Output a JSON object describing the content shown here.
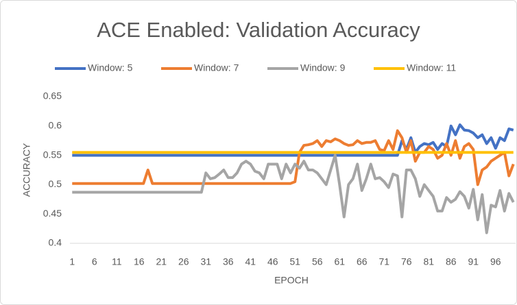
{
  "chart_data": {
    "type": "line",
    "title": "ACE Enabled: Validation Accuracy",
    "x_label": "EPOCH",
    "y_label": "ACCURACY",
    "categories": [
      "1",
      null,
      null,
      null,
      null,
      "6",
      null,
      null,
      null,
      null,
      "11",
      null,
      null,
      null,
      null,
      "16",
      null,
      null,
      null,
      null,
      "21",
      null,
      null,
      null,
      null,
      "26",
      null,
      null,
      null,
      null,
      "31",
      null,
      null,
      null,
      null,
      "36",
      null,
      null,
      null,
      null,
      "41",
      null,
      null,
      null,
      null,
      "46",
      null,
      null,
      null,
      null,
      "51",
      null,
      null,
      null,
      null,
      "56",
      null,
      null,
      null,
      null,
      "61",
      null,
      null,
      null,
      null,
      "66",
      null,
      null,
      null,
      null,
      "71",
      null,
      null,
      null,
      null,
      "76",
      null,
      null,
      null,
      null,
      "81",
      null,
      null,
      null,
      null,
      "86",
      null,
      null,
      null,
      null,
      "91",
      null,
      null,
      null,
      null,
      "96",
      null,
      null,
      null,
      null
    ],
    "series": [
      {
        "name": "Window: 5",
        "color": "#4472c4",
        "values": [
          0.55,
          0.55,
          0.55,
          0.55,
          0.55,
          0.55,
          0.55,
          0.55,
          0.55,
          0.55,
          0.55,
          0.55,
          0.55,
          0.55,
          0.55,
          0.55,
          0.55,
          0.55,
          0.55,
          0.55,
          0.55,
          0.55,
          0.55,
          0.55,
          0.55,
          0.55,
          0.55,
          0.55,
          0.55,
          0.55,
          0.55,
          0.55,
          0.55,
          0.55,
          0.55,
          0.55,
          0.55,
          0.55,
          0.55,
          0.55,
          0.55,
          0.55,
          0.55,
          0.55,
          0.55,
          0.55,
          0.55,
          0.55,
          0.55,
          0.55,
          0.55,
          0.55,
          0.55,
          0.55,
          0.55,
          0.55,
          0.55,
          0.55,
          0.55,
          0.55,
          0.55,
          0.55,
          0.55,
          0.55,
          0.55,
          0.55,
          0.55,
          0.55,
          0.55,
          0.55,
          0.55,
          0.55,
          0.55,
          0.55,
          0.575,
          0.56,
          0.58,
          0.555,
          0.565,
          0.57,
          0.568,
          0.572,
          0.56,
          0.57,
          0.565,
          0.6,
          0.585,
          0.602,
          0.593,
          0.592,
          0.588,
          0.58,
          0.585,
          0.57,
          0.58,
          0.562,
          0.58,
          0.575,
          0.595,
          0.593
        ]
      },
      {
        "name": "Window: 7",
        "color": "#ed7d31",
        "values": [
          0.502,
          0.502,
          0.502,
          0.502,
          0.502,
          0.502,
          0.502,
          0.502,
          0.502,
          0.502,
          0.502,
          0.502,
          0.502,
          0.502,
          0.502,
          0.502,
          0.502,
          0.525,
          0.502,
          0.502,
          0.502,
          0.502,
          0.502,
          0.502,
          0.502,
          0.502,
          0.502,
          0.502,
          0.502,
          0.502,
          0.502,
          0.502,
          0.502,
          0.502,
          0.502,
          0.502,
          0.502,
          0.502,
          0.502,
          0.502,
          0.502,
          0.502,
          0.502,
          0.502,
          0.502,
          0.502,
          0.502,
          0.502,
          0.502,
          0.502,
          0.505,
          0.555,
          0.567,
          0.568,
          0.57,
          0.575,
          0.565,
          0.575,
          0.573,
          0.578,
          0.575,
          0.57,
          0.567,
          0.568,
          0.575,
          0.57,
          0.572,
          0.572,
          0.575,
          0.56,
          0.558,
          0.575,
          0.56,
          0.592,
          0.58,
          0.555,
          0.575,
          0.54,
          0.555,
          0.555,
          0.565,
          0.56,
          0.545,
          0.55,
          0.57,
          0.55,
          0.575,
          0.545,
          0.565,
          0.57,
          0.56,
          0.5,
          0.525,
          0.53,
          0.54,
          0.545,
          0.55,
          0.555,
          0.515,
          0.535
        ]
      },
      {
        "name": "Window: 9",
        "color": "#a5a5a5",
        "values": [
          0.487,
          0.487,
          0.487,
          0.487,
          0.487,
          0.487,
          0.487,
          0.487,
          0.487,
          0.487,
          0.487,
          0.487,
          0.487,
          0.487,
          0.487,
          0.487,
          0.487,
          0.487,
          0.487,
          0.487,
          0.487,
          0.487,
          0.487,
          0.487,
          0.487,
          0.487,
          0.487,
          0.487,
          0.487,
          0.487,
          0.52,
          0.51,
          0.512,
          0.518,
          0.525,
          0.512,
          0.512,
          0.52,
          0.535,
          0.54,
          0.535,
          0.523,
          0.52,
          0.51,
          0.535,
          0.535,
          0.535,
          0.51,
          0.535,
          0.52,
          0.535,
          0.528,
          0.54,
          0.525,
          0.525,
          0.52,
          0.51,
          0.5,
          0.525,
          0.55,
          0.5,
          0.445,
          0.5,
          0.51,
          0.535,
          0.49,
          0.51,
          0.535,
          0.51,
          0.512,
          0.505,
          0.495,
          0.518,
          0.515,
          0.445,
          0.525,
          0.525,
          0.51,
          0.48,
          0.5,
          0.49,
          0.48,
          0.455,
          0.455,
          0.478,
          0.47,
          0.475,
          0.488,
          0.48,
          0.46,
          0.492,
          0.44,
          0.483,
          0.418,
          0.465,
          0.462,
          0.49,
          0.455,
          0.485,
          0.47
        ]
      },
      {
        "name": "Window: 11",
        "color": "#ffc000",
        "values": [
          0.555,
          0.555,
          0.555,
          0.555,
          0.555,
          0.555,
          0.555,
          0.555,
          0.555,
          0.555,
          0.555,
          0.555,
          0.555,
          0.555,
          0.555,
          0.555,
          0.555,
          0.555,
          0.555,
          0.555,
          0.555,
          0.555,
          0.555,
          0.555,
          0.555,
          0.555,
          0.555,
          0.555,
          0.555,
          0.555,
          0.555,
          0.555,
          0.555,
          0.555,
          0.555,
          0.555,
          0.555,
          0.555,
          0.555,
          0.555,
          0.555,
          0.555,
          0.555,
          0.555,
          0.555,
          0.555,
          0.555,
          0.555,
          0.555,
          0.555,
          0.555,
          0.555,
          0.555,
          0.555,
          0.555,
          0.555,
          0.555,
          0.555,
          0.555,
          0.555,
          0.555,
          0.555,
          0.555,
          0.555,
          0.555,
          0.555,
          0.555,
          0.555,
          0.555,
          0.555,
          0.555,
          0.555,
          0.555,
          0.555,
          0.555,
          0.555,
          0.555,
          0.555,
          0.555,
          0.555,
          0.555,
          0.555,
          0.555,
          0.555,
          0.555,
          0.555,
          0.555,
          0.555,
          0.555,
          0.555,
          0.555,
          0.555,
          0.555,
          0.555,
          0.555,
          0.555,
          0.555,
          0.555,
          0.555,
          0.555
        ]
      }
    ],
    "ylim": [
      0.4,
      0.65
    ],
    "yticks": [
      0.4,
      0.45,
      0.5,
      0.55,
      0.6,
      0.65
    ],
    "grid": false,
    "legend": "top"
  }
}
